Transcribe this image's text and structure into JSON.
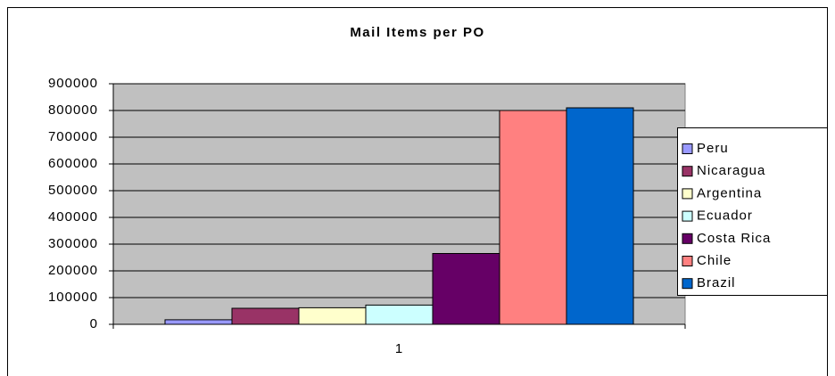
{
  "chart_data": {
    "type": "bar",
    "title": "Mail Items per PO",
    "categories": [
      "1"
    ],
    "series": [
      {
        "name": "Peru",
        "color": "#9999ff",
        "values": [
          17000
        ]
      },
      {
        "name": "Nicaragua",
        "color": "#993366",
        "values": [
          60000
        ]
      },
      {
        "name": "Argentina",
        "color": "#ffffcc",
        "values": [
          62000
        ]
      },
      {
        "name": "Ecuador",
        "color": "#ccffff",
        "values": [
          72000
        ]
      },
      {
        "name": "Costa Rica",
        "color": "#660066",
        "values": [
          265000
        ]
      },
      {
        "name": "Chile",
        "color": "#ff8080",
        "values": [
          800000
        ]
      },
      {
        "name": "Brazil",
        "color": "#0066cc",
        "values": [
          810000
        ]
      }
    ],
    "ylim": [
      0,
      900000
    ],
    "yticks": [
      0,
      100000,
      200000,
      300000,
      400000,
      500000,
      600000,
      700000,
      800000,
      900000
    ],
    "grid": true,
    "legend": "right",
    "plot_background": "#c0c0c0"
  }
}
